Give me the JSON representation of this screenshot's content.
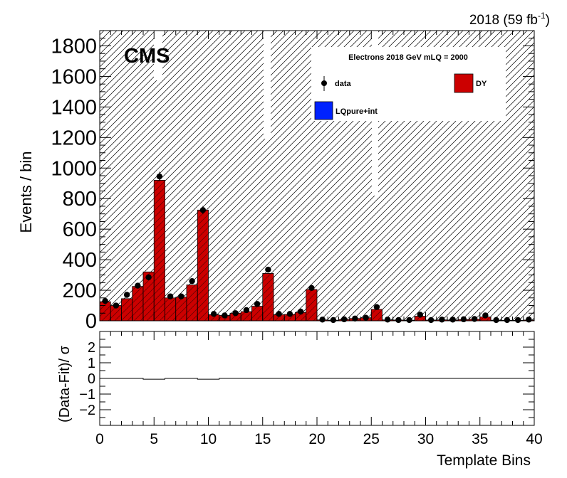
{
  "header": {
    "lumi_label": "2018 (59 fb",
    "lumi_superscript": "-1",
    "lumi_close": ")"
  },
  "cms_label": "CMS",
  "legend": {
    "title": "Electrons 2018  GeV mLQ = 2000",
    "entries": [
      {
        "label": "data",
        "marker": "point-errorbar"
      },
      {
        "label": "DY",
        "marker": "filled-box",
        "color": "#cc0000"
      },
      {
        "label": "LQpure+int",
        "marker": "filled-box",
        "color": "#0022ff"
      }
    ]
  },
  "colors": {
    "dy_fill": "#cc0000",
    "lq_fill": "#0022ff",
    "data_marker": "#000000"
  },
  "chart_data": [
    {
      "type": "bar",
      "panel": "main",
      "ylabel": "Events / bin",
      "xlim": [
        0,
        40
      ],
      "ylim": [
        0,
        1900
      ],
      "y_ticks": [
        0,
        200,
        400,
        600,
        800,
        1000,
        1200,
        1400,
        1600,
        1800
      ],
      "uncertainty_band": "hatched",
      "bin_edges_start": 0,
      "bin_width": 1,
      "series": [
        {
          "name": "DY",
          "style": "filled-histogram",
          "values": [
            125,
            100,
            145,
            225,
            320,
            920,
            150,
            155,
            235,
            725,
            40,
            35,
            50,
            60,
            95,
            310,
            40,
            42,
            55,
            205,
            6,
            4,
            8,
            15,
            20,
            75,
            6,
            5,
            4,
            30,
            5,
            6,
            5,
            8,
            10,
            25,
            4,
            3,
            3,
            5
          ]
        },
        {
          "name": "data",
          "style": "points",
          "values": [
            130,
            100,
            170,
            230,
            285,
            945,
            160,
            160,
            260,
            725,
            45,
            35,
            50,
            70,
            110,
            335,
            45,
            45,
            60,
            215,
            8,
            5,
            10,
            15,
            20,
            90,
            8,
            5,
            5,
            40,
            5,
            8,
            8,
            10,
            12,
            35,
            5,
            5,
            5,
            8
          ]
        }
      ]
    },
    {
      "type": "line",
      "panel": "ratio",
      "ylabel": "(Data-Fit)/ σ",
      "xlabel": "Template Bins",
      "xlim": [
        0,
        40
      ],
      "ylim": [
        -3,
        3
      ],
      "y_ticks": [
        -2,
        -1,
        0,
        1,
        2
      ],
      "x_ticks": [
        0,
        5,
        10,
        15,
        20,
        25,
        30,
        35,
        40
      ],
      "series": [
        {
          "name": "pull",
          "values": [
            0,
            0,
            0,
            0,
            -0.05,
            -0.05,
            0,
            0,
            0,
            -0.05,
            -0.05,
            0,
            0,
            0,
            0,
            0,
            0,
            0,
            0,
            0,
            0,
            0,
            0,
            0,
            0,
            0,
            0,
            0,
            0,
            0,
            0,
            0,
            0,
            0,
            0,
            0,
            0,
            0,
            0,
            0
          ]
        }
      ]
    }
  ]
}
